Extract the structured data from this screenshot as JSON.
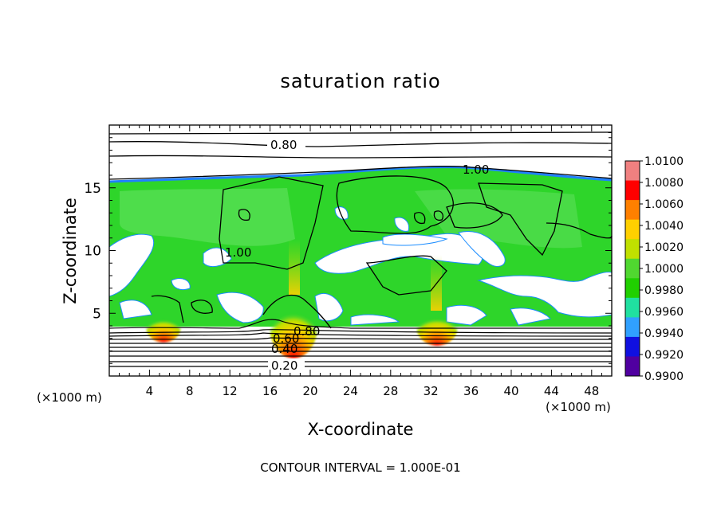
{
  "chart_data": {
    "type": "heatmap",
    "title": "saturation ratio",
    "xlabel": "X-coordinate",
    "ylabel": "Z-coordinate",
    "x_unit_left": "(×1000 m)",
    "x_unit_right": "(×1000 m)",
    "xlim": [
      0,
      50
    ],
    "ylim": [
      0,
      20
    ],
    "xticks": [
      "4",
      "8",
      "12",
      "16",
      "20",
      "24",
      "28",
      "32",
      "36",
      "40",
      "44",
      "48"
    ],
    "yticks": [
      "5",
      "10",
      "15"
    ],
    "colorbar": {
      "min": 0.99,
      "max": 1.01,
      "labels": [
        "1.0100",
        "1.0080",
        "1.0060",
        "1.0040",
        "1.0020",
        "1.0000",
        "0.9980",
        "0.9960",
        "0.9940",
        "0.9920",
        "0.9900"
      ],
      "colors": [
        "#f08080",
        "#ff0000",
        "#ff8000",
        "#ffd000",
        "#c0e000",
        "#50d830",
        "#20d000",
        "#20e0a0",
        "#30a0ff",
        "#1010e0",
        "#5000a0"
      ]
    },
    "contour_labels": [
      "0.80",
      "1.00",
      "1.00",
      "0.80",
      "0.60",
      "0.40",
      "0.20"
    ],
    "contour_interval_text": "CONTOUR INTERVAL = 1.000E-01",
    "field_description": [
      {
        "region": "upper atmosphere z>16",
        "value": "below 0.99 (white, contoured)"
      },
      {
        "region": "cloud layer 4<z<16",
        "value": "≈1.000 (green) with subsaturated white patches"
      },
      {
        "region": "surface hotspots near x=5, 18, 32",
        "value": "up to 1.0100 (red)"
      },
      {
        "region": "lower layer z<4",
        "value": "below 0.99 (white, contoured)"
      }
    ]
  }
}
